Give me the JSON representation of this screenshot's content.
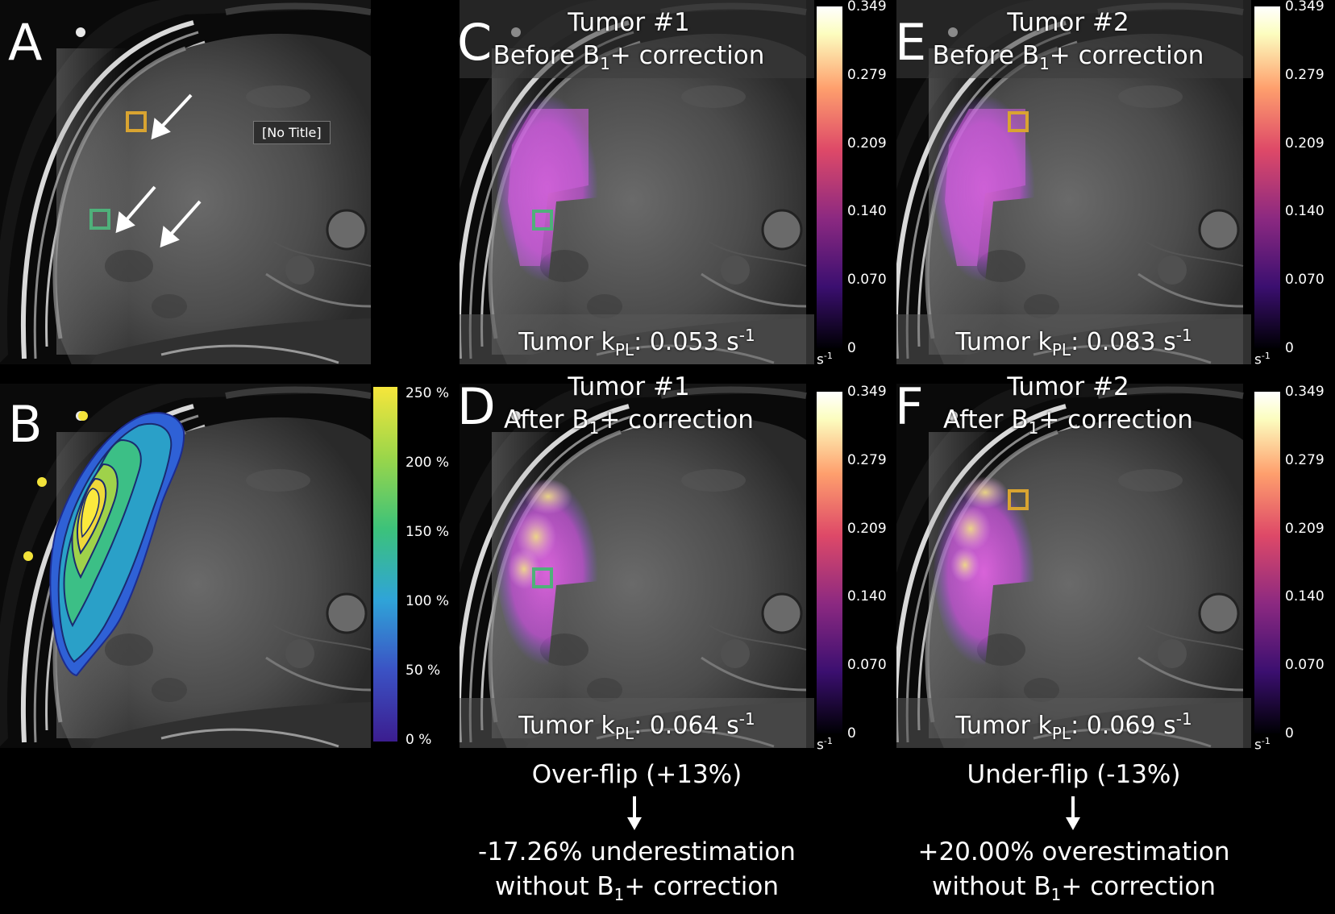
{
  "panels": {
    "A": {
      "letter": "A",
      "label_box": "[No Title]"
    },
    "B": {
      "letter": "B",
      "colorbar": {
        "ticks": [
          "250 %",
          "200 %",
          "150 %",
          "100 %",
          "50 %",
          "0 %"
        ],
        "colors": [
          "#440154",
          "#3b52c4",
          "#2fa4d8",
          "#3cc27a",
          "#9ad64a",
          "#f6e63b"
        ]
      }
    },
    "C": {
      "letter": "C",
      "title1": "Tumor #1",
      "title2_pre": "Before B",
      "title2_sub": "1",
      "title2_post": "+ correction",
      "kpl_pre": "Tumor k",
      "kpl_sub": "PL",
      "kpl_val": ": 0.053 s",
      "kpl_sup": "-1"
    },
    "D": {
      "letter": "D",
      "title1": "Tumor #1",
      "title2_pre": "After B",
      "title2_sub": "1",
      "title2_post": "+ correction",
      "kpl_pre": "Tumor k",
      "kpl_sub": "PL",
      "kpl_val": ": 0.064 s",
      "kpl_sup": "-1"
    },
    "E": {
      "letter": "E",
      "title1": "Tumor #2",
      "title2_pre": "Before B",
      "title2_sub": "1",
      "title2_post": "+ correction",
      "kpl_pre": "Tumor k",
      "kpl_sub": "PL",
      "kpl_val": ": 0.083 s",
      "kpl_sup": "-1"
    },
    "F": {
      "letter": "F",
      "title1": "Tumor #2",
      "title2_pre": "After B",
      "title2_sub": "1",
      "title2_post": "+ correction",
      "kpl_pre": "Tumor k",
      "kpl_sub": "PL",
      "kpl_val": ": 0.069 s",
      "kpl_sup": "-1"
    }
  },
  "kpl_colorbar": {
    "ticks": [
      "0.349",
      "0.279",
      "0.209",
      "0.140",
      "0.070",
      "0"
    ],
    "unit": "s",
    "unit_sup": "-1",
    "colors": [
      "#000004",
      "#3b0f70",
      "#8c2981",
      "#de4968",
      "#fe9f6d",
      "#fcfdbf",
      "#ffffff"
    ]
  },
  "footer_left": {
    "line1": "Over-flip (+13%)",
    "line2": "-17.26% underestimation",
    "line3_pre": "without B",
    "line3_sub": "1",
    "line3_post": "+ correction"
  },
  "footer_right": {
    "line1": "Under-flip (-13%)",
    "line2": "+20.00% overestimation",
    "line3_pre": "without B",
    "line3_sub": "1",
    "line3_post": "+ correction"
  },
  "colors": {
    "roi_tumor1": "#4fb07a",
    "roi_tumor2": "#d9a431",
    "coil_dot": "#f3e33a",
    "arrow": "#ffffff"
  }
}
